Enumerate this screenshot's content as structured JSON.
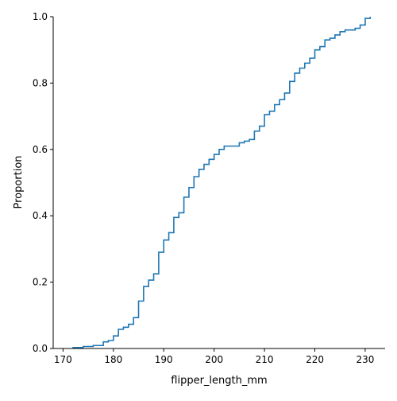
{
  "chart_data": {
    "type": "line",
    "subtype": "ecdf",
    "title": "",
    "xlabel": "flipper_length_mm",
    "ylabel": "Proportion",
    "xlim": [
      168.05,
      233.95
    ],
    "ylim": [
      0,
      1.0
    ],
    "xticks": [
      170,
      180,
      190,
      200,
      210,
      220,
      230
    ],
    "yticks": [
      0.0,
      0.2,
      0.4,
      0.6,
      0.8,
      1.0
    ],
    "xtick_labels": [
      "170",
      "180",
      "190",
      "200",
      "210",
      "220",
      "230"
    ],
    "ytick_labels": [
      "0.0",
      "0.2",
      "0.4",
      "0.6",
      "0.8",
      "1.0"
    ],
    "grid": false,
    "legend": "none",
    "line_color": "#1f77b4",
    "series": [
      {
        "x": [
          172,
          174,
          176,
          178,
          179,
          180,
          181,
          182,
          183,
          184,
          185,
          186,
          187,
          188,
          189,
          190,
          191,
          192,
          193,
          194,
          195,
          196,
          197,
          198,
          199,
          200,
          201,
          202,
          203,
          205,
          206,
          207,
          208,
          209,
          210,
          211,
          212,
          213,
          214,
          215,
          216,
          217,
          218,
          219,
          220,
          221,
          222,
          223,
          224,
          225,
          226,
          228,
          229,
          230,
          231
        ],
        "y": [
          0.003,
          0.006,
          0.009,
          0.02,
          0.024,
          0.038,
          0.058,
          0.064,
          0.073,
          0.093,
          0.143,
          0.187,
          0.206,
          0.225,
          0.29,
          0.327,
          0.349,
          0.395,
          0.409,
          0.456,
          0.485,
          0.518,
          0.54,
          0.555,
          0.57,
          0.585,
          0.6,
          0.61,
          0.61,
          0.62,
          0.625,
          0.63,
          0.655,
          0.67,
          0.705,
          0.715,
          0.735,
          0.75,
          0.77,
          0.805,
          0.83,
          0.845,
          0.86,
          0.875,
          0.9,
          0.91,
          0.93,
          0.935,
          0.945,
          0.955,
          0.96,
          0.965,
          0.975,
          0.995,
          1.0
        ]
      }
    ]
  }
}
